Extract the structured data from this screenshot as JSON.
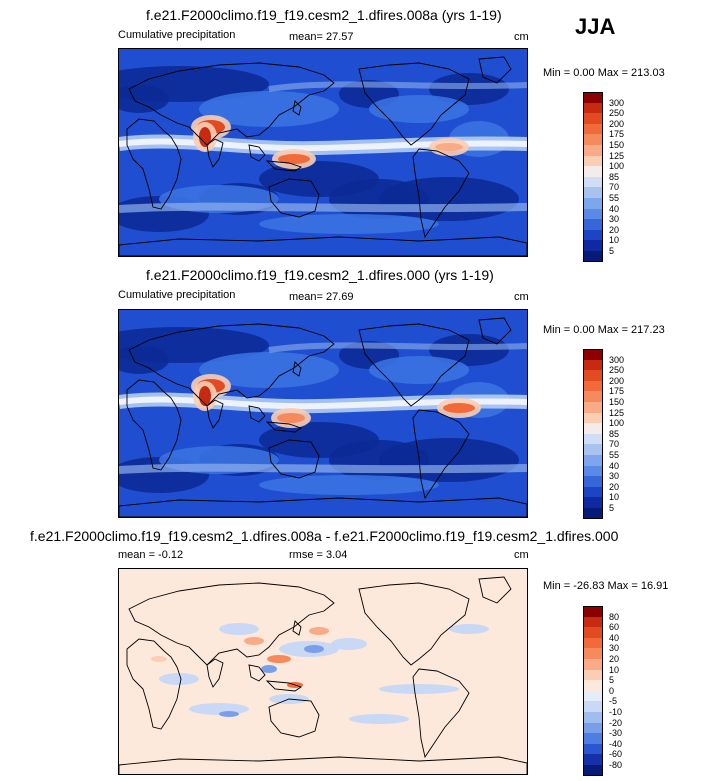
{
  "season": "JJA",
  "units": "cm",
  "panels": [
    {
      "title": "f.e21.F2000climo.f19_f19.cesm2_1.dfires.008a (yrs 1-19)",
      "variable": "Cumulative precipitation",
      "stat": "mean=  27.57",
      "units": "cm",
      "minmax": "Min =   0.00 Max = 213.03",
      "levels": [
        "300",
        "250",
        "200",
        "175",
        "150",
        "125",
        "100",
        "85",
        "70",
        "55",
        "40",
        "30",
        "20",
        "10",
        "5"
      ],
      "colors": [
        "#8b0000",
        "#c62a10",
        "#e24a22",
        "#f06a3a",
        "#f58a5c",
        "#f8ab86",
        "#fbcdb3",
        "#f3ecea",
        "#d0ddf5",
        "#a9c3f0",
        "#7ea6ec",
        "#5a89e6",
        "#3766db",
        "#1d44c4",
        "#0f2aa0",
        "#061b78"
      ],
      "style": "precip"
    },
    {
      "title": "f.e21.F2000climo.f19_f19.cesm2_1.dfires.000 (yrs 1-19)",
      "variable": "Cumulative precipitation",
      "stat": "mean=  27.69",
      "units": "cm",
      "minmax": "Min =   0.00 Max = 217.23",
      "levels": [
        "300",
        "250",
        "200",
        "175",
        "150",
        "125",
        "100",
        "85",
        "70",
        "55",
        "40",
        "30",
        "20",
        "10",
        "5"
      ],
      "colors": [
        "#8b0000",
        "#c62a10",
        "#e24a22",
        "#f06a3a",
        "#f58a5c",
        "#f8ab86",
        "#fbcdb3",
        "#f3ecea",
        "#d0ddf5",
        "#a9c3f0",
        "#7ea6ec",
        "#5a89e6",
        "#3766db",
        "#1d44c4",
        "#0f2aa0",
        "#061b78"
      ],
      "style": "precip"
    },
    {
      "title": "f.e21.F2000climo.f19_f19.cesm2_1.dfires.008a - f.e21.F2000climo.f19_f19.cesm2_1.dfires.000",
      "stat_left": "mean =  -0.12",
      "stat": "rmse =  3.04",
      "units": "cm",
      "minmax": "Min = -26.83 Max =  16.91",
      "levels": [
        "80",
        "60",
        "40",
        "30",
        "20",
        "10",
        "5",
        "0",
        "-5",
        "-10",
        "-20",
        "-30",
        "-40",
        "-60",
        "-80"
      ],
      "colors": [
        "#8b0000",
        "#c62a10",
        "#e24a22",
        "#f06a3a",
        "#f58a5c",
        "#f8ab86",
        "#fbcdb3",
        "#fde8dc",
        "#e4ecfa",
        "#c8d8f5",
        "#a0bdf0",
        "#7a9fea",
        "#4f7de2",
        "#2a56d2",
        "#1530a8",
        "#061b78"
      ],
      "style": "diff"
    }
  ]
}
